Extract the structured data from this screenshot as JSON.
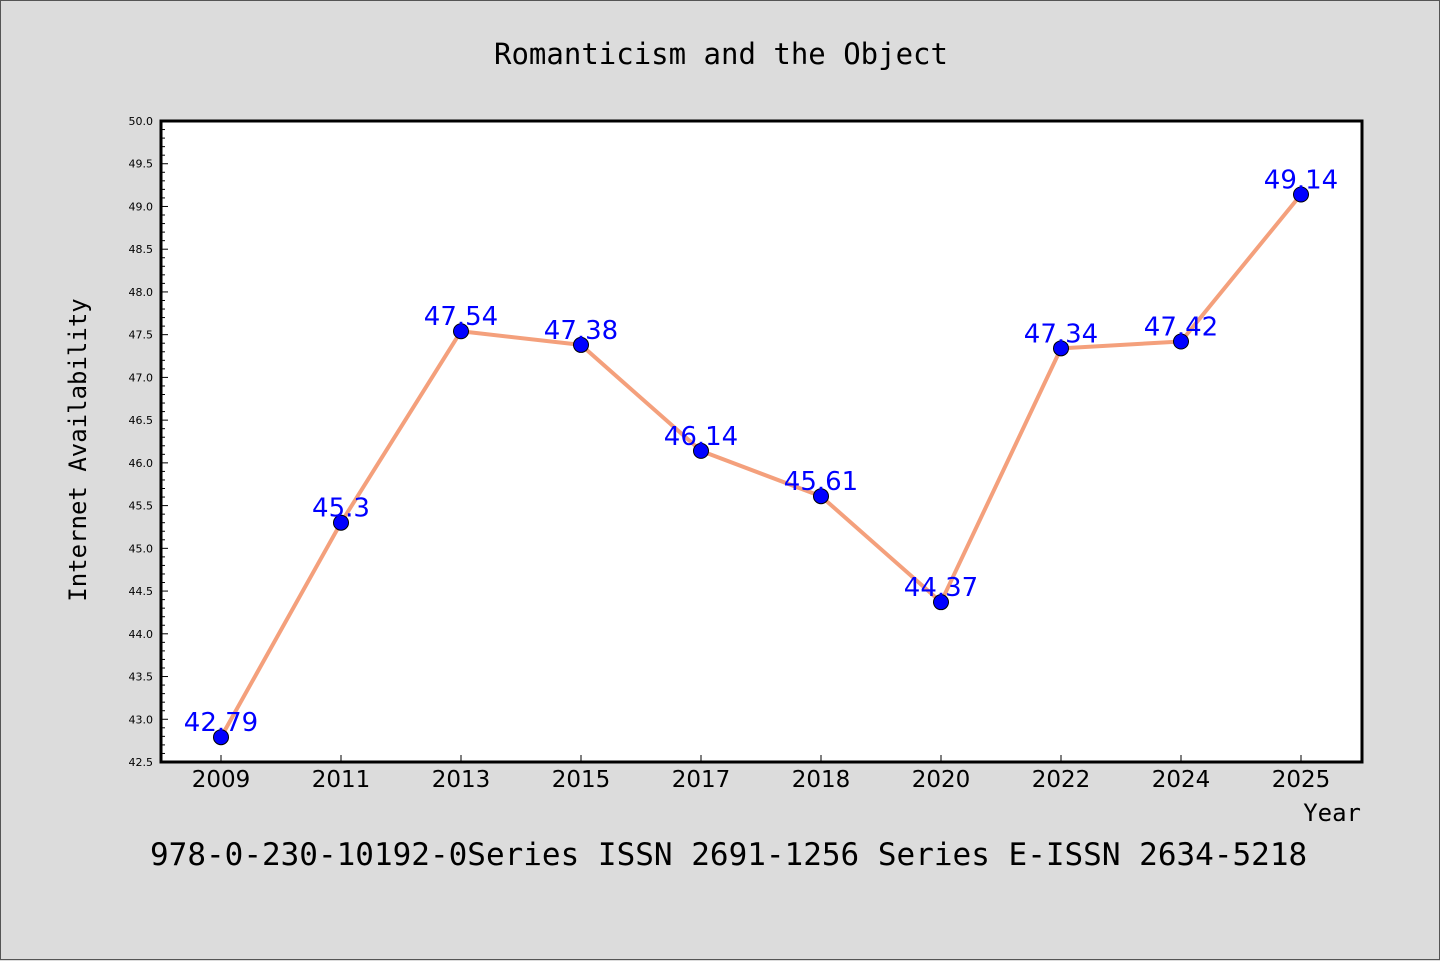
{
  "chart_data": {
    "type": "line",
    "title": "Romanticism and the Object",
    "xlabel": "Year",
    "ylabel": "Internet Availability",
    "categories": [
      "2009",
      "2011",
      "2013",
      "2015",
      "2017",
      "2018",
      "2020",
      "2022",
      "2024",
      "2025"
    ],
    "series": [
      {
        "values": [
          42.79,
          45.3,
          47.54,
          47.38,
          46.14,
          45.61,
          44.37,
          47.34,
          47.42,
          49.14
        ],
        "data_labels": [
          "42.79",
          "45.3",
          "47.54",
          "47.38",
          "46.14",
          "45.61",
          "44.37",
          "47.34",
          "47.42",
          "49.14"
        ],
        "line_color": "#f4a07c",
        "marker_color": "#0000ff",
        "label_color": "#0000ff"
      }
    ],
    "ylim": [
      42.5,
      50.0
    ],
    "yticks": [
      "42.5",
      "43.0",
      "43.5",
      "44.0",
      "44.5",
      "45.0",
      "45.5",
      "46.0",
      "46.5",
      "47.0",
      "47.5",
      "48.0",
      "48.5",
      "49.0",
      "49.5",
      "50.0"
    ],
    "grid": false,
    "legend": "none"
  },
  "footer": {
    "text": "978-0-230-10192-0Series ISSN 2691-1256 Series E-ISSN 2634-5218"
  },
  "colors": {
    "background": "#dcdcdc",
    "plot_background": "#ffffff"
  }
}
